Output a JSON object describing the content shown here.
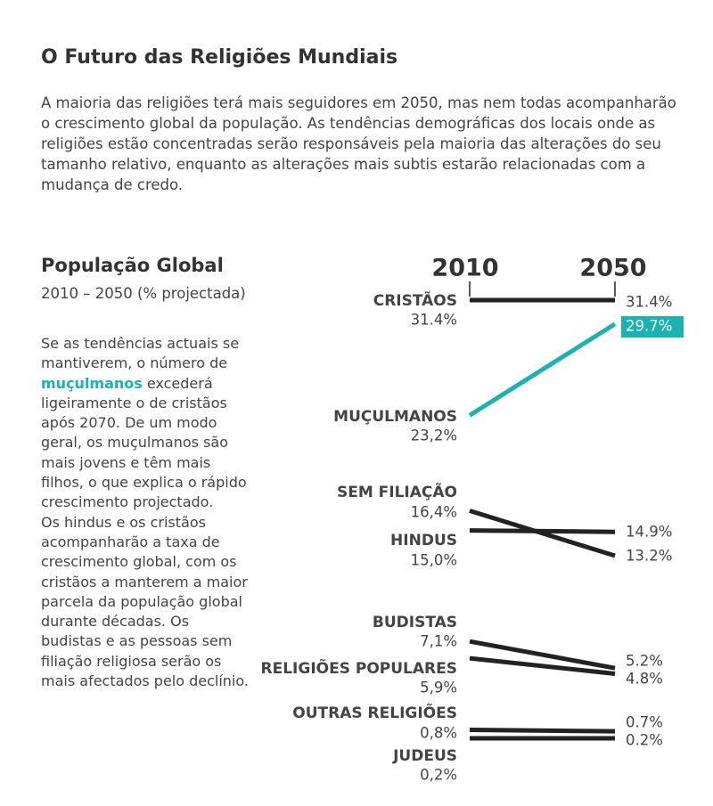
{
  "header": {
    "title": "O Futuro das Religiões Mundiais",
    "description": "A maioria das religiões terá mais seguidores em 2050, mas nem todas acompanharão o crescimento global da população. As tendências demográficas dos locais onde as religiões estão concentradas serão responsáveis pela maioria das alterações do seu tamanho relativo, enquanto as alterações mais subtis estarão relacionadas com a mudança de credo."
  },
  "sidebar": {
    "title": "População Global",
    "subtitle": "2010 – 2050 (% projectada)",
    "paragraph1": {
      "before": "Se as tendências actuais se mantiverem, o número de ",
      "highlight": "muçulmanos",
      "after": " excederá ligeiramente o de cristãos após 2070. De um modo geral, os muçulmanos são mais jovens e têm mais filhos, o que explica o rápido crescimento projectado."
    },
    "paragraph2": "Os hindus e os cristãos acompanharão a taxa de crescimento global, com os cristãos a manterem a maior parcela da população global durante décadas. Os budistas e as pessoas sem filiação religiosa serão os mais afectados pelo declínio."
  },
  "chart_data": {
    "type": "slope",
    "categories": [
      "CRISTÃOS",
      "MUÇULMANOS",
      "SEM FILIAÇÃO",
      "HINDUS",
      "BUDISTAS",
      "RELIGIÕES POPULARES",
      "OUTRAS RELIGIÕES",
      "JUDEUS"
    ],
    "colors": [
      "#222222",
      "#1ab3b0",
      "#222222",
      "#222222",
      "#222222",
      "#222222",
      "#222222",
      "#222222"
    ],
    "series": [
      {
        "name": "2010",
        "values": [
          31.4,
          23.2,
          16.4,
          15.0,
          7.1,
          5.9,
          0.8,
          0.2
        ],
        "value_labels": [
          "31.4%",
          "23,2%",
          "16,4%",
          "15,0%",
          "7,1%",
          "5,9%",
          "0,8%",
          "0,2%"
        ]
      },
      {
        "name": "2050",
        "values": [
          31.4,
          29.7,
          13.2,
          14.9,
          5.2,
          4.8,
          0.7,
          0.2
        ],
        "value_labels": [
          "31.4%",
          "29.7%",
          "13.2%",
          "14.9%",
          "5.2%",
          "4.8%",
          "0.7%",
          "0.2%"
        ]
      }
    ]
  }
}
